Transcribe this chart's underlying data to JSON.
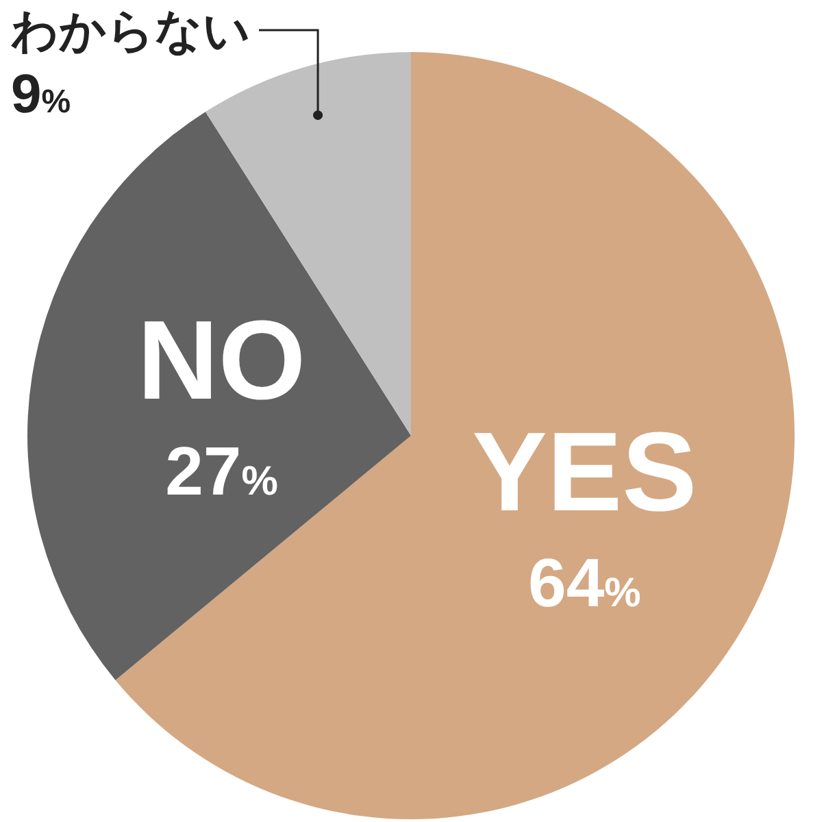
{
  "chart_data": {
    "type": "pie",
    "categories": [
      "YES",
      "NO",
      "わからない"
    ],
    "values": [
      64,
      27,
      9
    ],
    "colors": [
      "#d4a882",
      "#636262",
      "#c0c0c0"
    ],
    "value_labels": [
      "64%",
      "27%",
      "9%"
    ]
  }
}
